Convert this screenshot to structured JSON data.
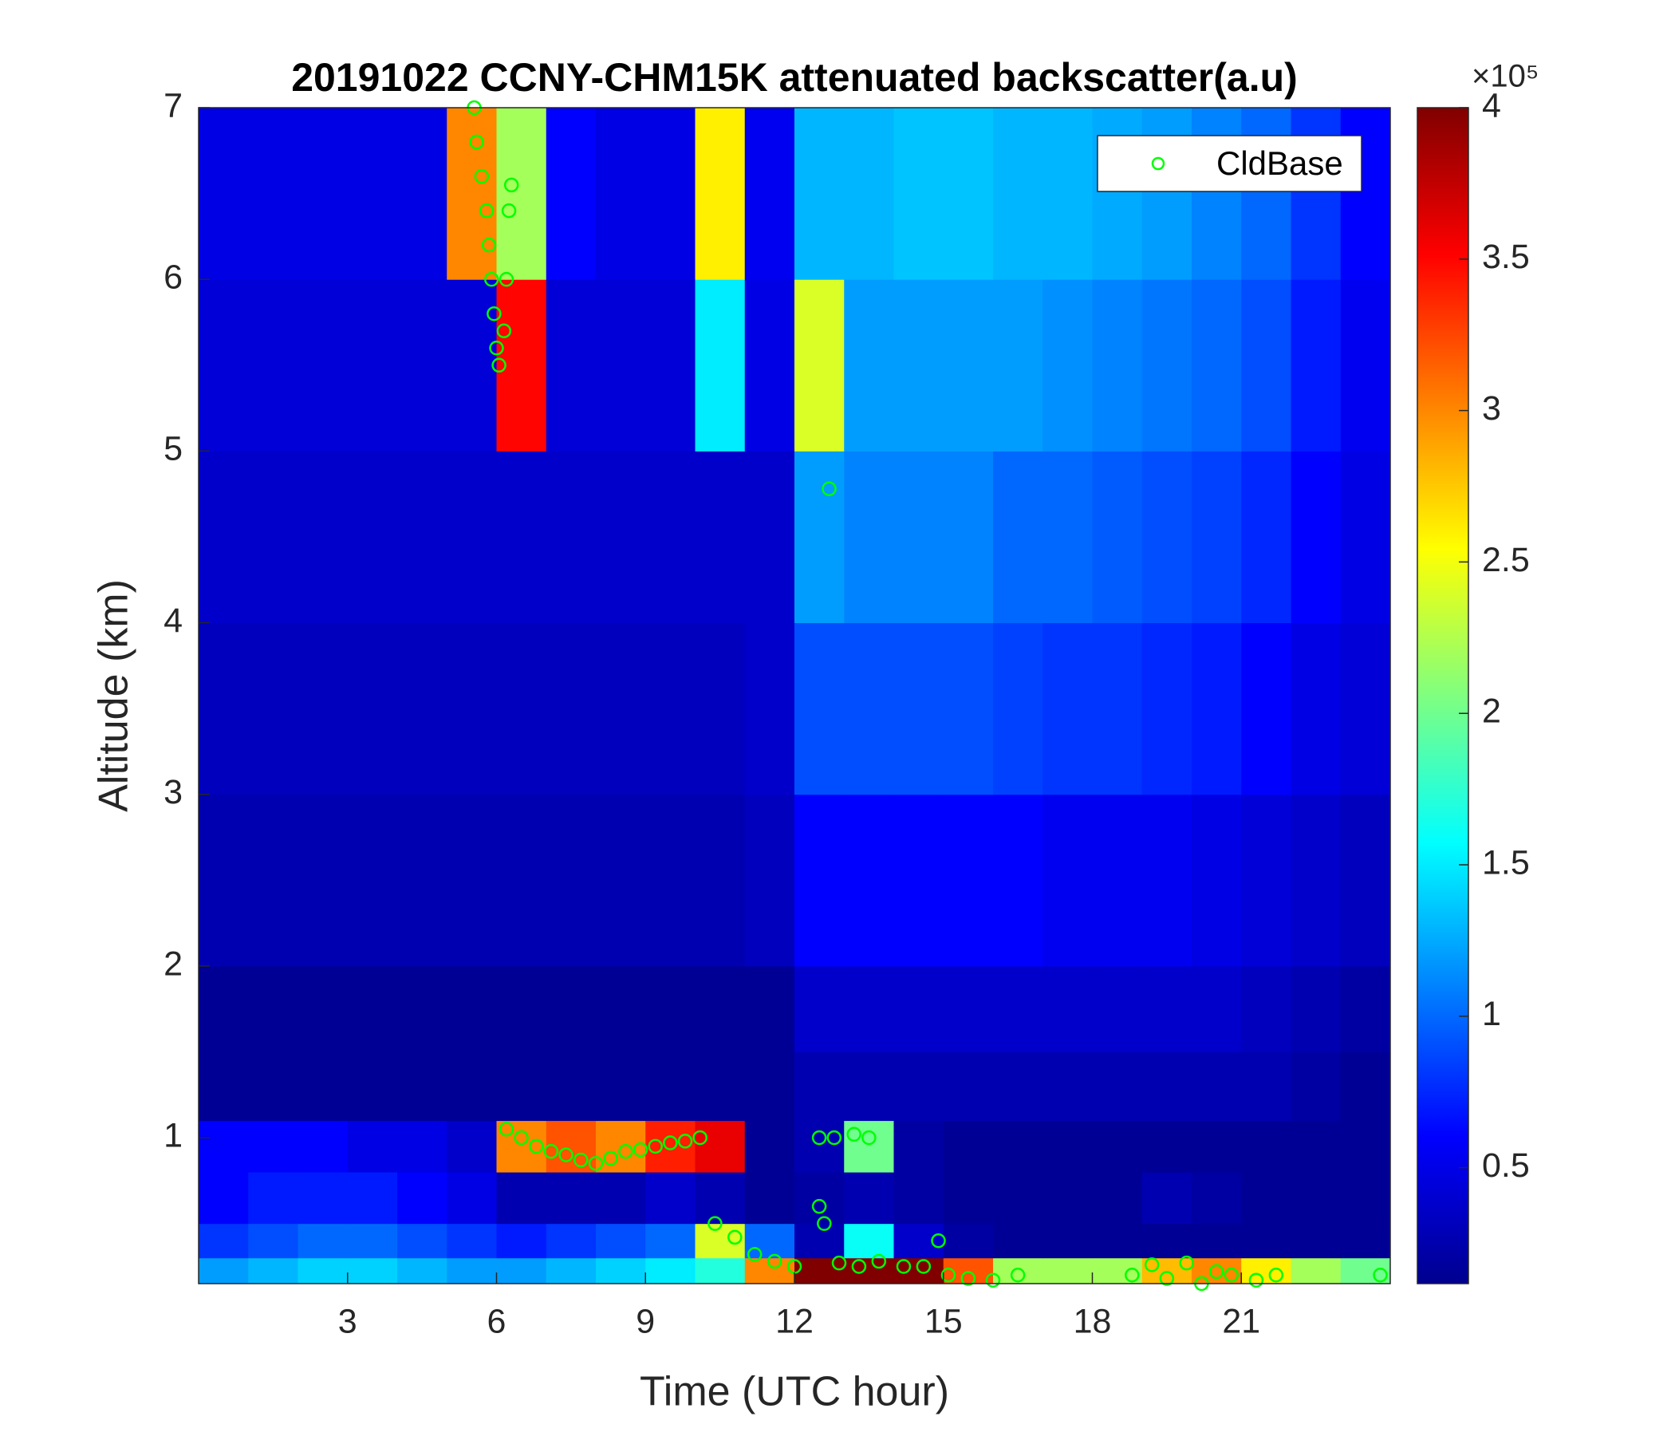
{
  "chart_data": {
    "type": "heatmap",
    "title": "20191022 CCNY-CHM15K attenuated backscatter(a.u)",
    "xlabel": "Time (UTC hour)",
    "ylabel": "Altitude (km)",
    "xlim": [
      0,
      24
    ],
    "xticks": [
      3,
      6,
      9,
      12,
      15,
      18,
      21
    ],
    "ylim": [
      0.15,
      7
    ],
    "yticks": [
      1,
      2,
      3,
      4,
      5,
      6,
      7
    ],
    "x_edges": [
      0,
      1,
      2,
      3,
      4,
      5,
      6,
      7,
      8,
      9,
      10,
      11,
      12,
      13,
      14,
      15,
      16,
      17,
      18,
      19,
      20,
      21,
      22,
      23,
      24
    ],
    "y_edges": [
      0.15,
      0.3,
      0.5,
      0.8,
      1.1,
      1.5,
      2,
      3,
      4,
      5,
      6,
      7
    ],
    "z": [
      [
        1.2,
        1.3,
        1.4,
        1.4,
        1.3,
        1.2,
        1.2,
        1.3,
        1.4,
        1.5,
        1.7,
        3.0,
        4,
        4,
        4,
        3.2,
        2.2,
        2.2,
        2.2,
        2.8,
        3.0,
        2.6,
        2.2,
        2.0
      ],
      [
        0.8,
        0.9,
        1.0,
        1.0,
        0.9,
        0.8,
        0.7,
        0.8,
        0.9,
        1.0,
        2.4,
        1.0,
        0.3,
        1.6,
        0.4,
        0.25,
        0.2,
        0.2,
        0.2,
        0.2,
        0.2,
        0.2,
        0.2,
        0.2
      ],
      [
        0.6,
        0.7,
        0.7,
        0.7,
        0.6,
        0.5,
        0.3,
        0.3,
        0.3,
        0.4,
        0.3,
        0.2,
        0.25,
        0.3,
        0.25,
        0.2,
        0.2,
        0.2,
        0.2,
        0.3,
        0.25,
        0.2,
        0.2,
        0.2
      ],
      [
        0.6,
        0.6,
        0.6,
        0.5,
        0.5,
        0.4,
        3.0,
        3.2,
        3.0,
        3.4,
        3.6,
        0.2,
        0.3,
        2.0,
        0.25,
        0.2,
        0.2,
        0.2,
        0.2,
        0.2,
        0.2,
        0.2,
        0.2,
        0.2
      ],
      [
        0.2,
        0.2,
        0.2,
        0.2,
        0.2,
        0.2,
        0.2,
        0.2,
        0.2,
        0.2,
        0.2,
        0.2,
        0.3,
        0.3,
        0.3,
        0.3,
        0.3,
        0.3,
        0.3,
        0.3,
        0.3,
        0.3,
        0.25,
        0.2
      ],
      [
        0.2,
        0.2,
        0.2,
        0.2,
        0.2,
        0.2,
        0.2,
        0.2,
        0.2,
        0.2,
        0.2,
        0.2,
        0.4,
        0.4,
        0.4,
        0.4,
        0.4,
        0.4,
        0.4,
        0.4,
        0.4,
        0.35,
        0.3,
        0.25
      ],
      [
        0.3,
        0.3,
        0.3,
        0.3,
        0.3,
        0.3,
        0.3,
        0.3,
        0.3,
        0.3,
        0.3,
        0.35,
        0.6,
        0.6,
        0.6,
        0.6,
        0.6,
        0.55,
        0.55,
        0.55,
        0.5,
        0.45,
        0.4,
        0.35
      ],
      [
        0.35,
        0.35,
        0.35,
        0.35,
        0.35,
        0.35,
        0.35,
        0.35,
        0.35,
        0.35,
        0.35,
        0.4,
        0.9,
        0.9,
        0.9,
        0.9,
        0.85,
        0.8,
        0.8,
        0.75,
        0.7,
        0.6,
        0.5,
        0.45
      ],
      [
        0.4,
        0.4,
        0.4,
        0.4,
        0.4,
        0.4,
        0.4,
        0.4,
        0.4,
        0.4,
        0.4,
        0.4,
        1.2,
        1.1,
        1.1,
        1.1,
        1.0,
        1.0,
        0.95,
        0.9,
        0.85,
        0.75,
        0.6,
        0.5
      ],
      [
        0.45,
        0.45,
        0.45,
        0.45,
        0.45,
        0.45,
        3.5,
        0.45,
        0.45,
        0.45,
        1.5,
        0.5,
        2.4,
        1.2,
        1.2,
        1.2,
        1.2,
        1.15,
        1.1,
        1.05,
        1.0,
        0.9,
        0.7,
        0.55
      ],
      [
        0.5,
        0.5,
        0.5,
        0.5,
        0.5,
        3.0,
        2.2,
        0.6,
        0.5,
        0.5,
        2.6,
        0.55,
        1.3,
        1.3,
        1.35,
        1.35,
        1.3,
        1.3,
        1.25,
        1.2,
        1.1,
        1.0,
        0.8,
        0.6
      ]
    ],
    "colormap": "jet",
    "clim": [
      0.117,
      4
    ],
    "cticks": [
      0.5,
      1,
      1.5,
      2,
      2.5,
      3,
      3.5,
      4
    ],
    "colorbar_exponent": "×10⁵",
    "series": [
      {
        "name": "CldBase",
        "color": "#00ff00",
        "marker": "circle-open",
        "x": [
          5.55,
          5.6,
          5.7,
          5.8,
          5.85,
          5.9,
          5.95,
          6.0,
          6.05,
          6.15,
          6.2,
          6.25,
          6.3,
          6.2,
          6.5,
          6.8,
          7.1,
          7.4,
          7.7,
          8.0,
          8.3,
          8.6,
          8.9,
          9.2,
          9.5,
          9.8,
          10.1,
          10.4,
          10.8,
          11.2,
          11.6,
          12.0,
          12.5,
          12.6,
          12.5,
          12.8,
          13.2,
          13.5,
          12.7,
          12.9,
          13.3,
          13.7,
          14.2,
          14.6,
          14.9,
          15.1,
          15.5,
          16.0,
          16.5,
          18.8,
          19.2,
          19.5,
          19.9,
          20.2,
          20.5,
          20.8,
          21.3,
          21.7,
          23.8
        ],
        "y": [
          7.0,
          6.8,
          6.6,
          6.4,
          6.2,
          6.0,
          5.8,
          5.6,
          5.5,
          5.7,
          6.0,
          6.4,
          6.55,
          1.05,
          1.0,
          0.95,
          0.92,
          0.9,
          0.87,
          0.85,
          0.88,
          0.92,
          0.93,
          0.95,
          0.97,
          0.98,
          1.0,
          0.5,
          0.42,
          0.32,
          0.28,
          0.25,
          0.6,
          0.5,
          1.0,
          1.0,
          1.02,
          1.0,
          4.78,
          0.27,
          0.25,
          0.28,
          0.25,
          0.25,
          0.4,
          0.2,
          0.18,
          0.17,
          0.2,
          0.2,
          0.26,
          0.18,
          0.27,
          0.15,
          0.22,
          0.2,
          0.17,
          0.2,
          0.2
        ]
      }
    ],
    "legend": "northeast"
  }
}
